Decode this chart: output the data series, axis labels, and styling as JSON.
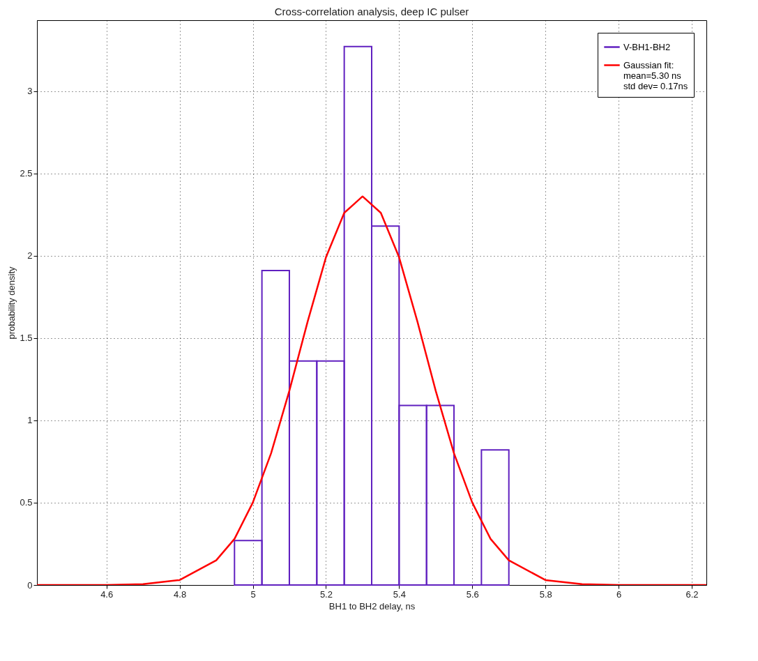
{
  "chart_data": {
    "type": "histogram",
    "title": "Cross-correlation analysis, deep IC pulser",
    "xlabel": "BH1 to BH2 delay, ns",
    "ylabel": "probability density",
    "bins": [
      4.95,
      5.025,
      5.1,
      5.175,
      5.25,
      5.325,
      5.4,
      5.475,
      5.55,
      5.625,
      5.7
    ],
    "series": [
      {
        "name": "V-BH1-BH2",
        "color": "#6020c0",
        "values": [
          0.27,
          1.91,
          1.36,
          1.36,
          3.27,
          2.18,
          1.09,
          1.09,
          0,
          0.82
        ]
      },
      {
        "type": "line",
        "name": "Gaussian fit:\nmean=5.30 ns\nstd dev= 0.17ns",
        "color": "#ff0000",
        "x": [
          4.41,
          4.6,
          4.7,
          4.8,
          4.9,
          4.95,
          5.0,
          5.05,
          5.1,
          5.15,
          5.2,
          5.25,
          5.3,
          5.35,
          5.4,
          5.45,
          5.5,
          5.55,
          5.6,
          5.65,
          5.7,
          5.8,
          5.9,
          6.0,
          6.24
        ],
        "values": [
          0,
          0,
          0.005,
          0.03,
          0.15,
          0.28,
          0.5,
          0.8,
          1.18,
          1.6,
          1.99,
          2.26,
          2.36,
          2.26,
          1.99,
          1.6,
          1.18,
          0.8,
          0.5,
          0.28,
          0.15,
          0.03,
          0.005,
          0,
          0
        ]
      }
    ],
    "xlim": [
      4.41,
      6.24
    ],
    "ylim": [
      0,
      3.43
    ],
    "xticks": [
      4.6,
      4.8,
      5,
      5.2,
      5.4,
      5.6,
      5.8,
      6,
      6.2
    ],
    "yticks": [
      0,
      0.5,
      1,
      1.5,
      2,
      2.5,
      3
    ],
    "grid": true,
    "legend": "top right",
    "line_style": "solid"
  }
}
